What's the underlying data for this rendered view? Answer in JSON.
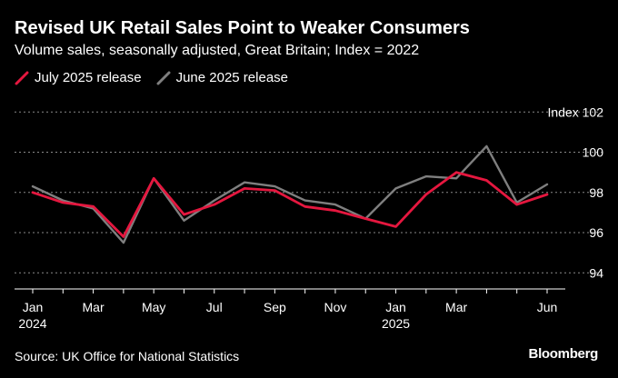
{
  "header": {
    "title": "Revised UK Retail Sales Point to Weaker Consumers",
    "subtitle": "Volume sales, seasonally adjusted, Great Britain; Index = 2022"
  },
  "footer": {
    "source": "Source: UK Office for National Statistics",
    "brand": "Bloomberg"
  },
  "chart_data": {
    "type": "line",
    "title": "Revised UK Retail Sales Point to Weaker Consumers",
    "subtitle": "Volume sales, seasonally adjusted, Great Britain; Index = 2022",
    "x": [
      "2024-01",
      "2024-02",
      "2024-03",
      "2024-04",
      "2024-05",
      "2024-06",
      "2024-07",
      "2024-08",
      "2024-09",
      "2024-10",
      "2024-11",
      "2024-12",
      "2025-01",
      "2025-02",
      "2025-03",
      "2025-04",
      "2025-05",
      "2025-06"
    ],
    "x_tick_labels": [
      {
        "month": "Jan",
        "year": "2024",
        "index": 0
      },
      {
        "month": "Mar",
        "year": "",
        "index": 2
      },
      {
        "month": "May",
        "year": "",
        "index": 4
      },
      {
        "month": "Jul",
        "year": "",
        "index": 6
      },
      {
        "month": "Sep",
        "year": "",
        "index": 8
      },
      {
        "month": "Nov",
        "year": "",
        "index": 10
      },
      {
        "month": "Jan",
        "year": "2025",
        "index": 12
      },
      {
        "month": "Mar",
        "year": "",
        "index": 14
      },
      {
        "month": "Jun",
        "year": "",
        "index": 17
      }
    ],
    "y_ticks": [
      94,
      96,
      98,
      100,
      102
    ],
    "y_unit_label": "Index",
    "ylim": [
      93.2,
      102.6
    ],
    "grid": true,
    "legend_position": "top-left",
    "series": [
      {
        "name": "July 2025 release",
        "color": "#e5173f",
        "values": [
          98.0,
          97.5,
          97.3,
          95.8,
          98.7,
          96.9,
          97.4,
          98.2,
          98.1,
          97.3,
          97.1,
          96.7,
          96.3,
          97.9,
          99.0,
          98.6,
          97.4,
          97.9
        ]
      },
      {
        "name": "June 2025 release",
        "color": "#7f7f7f",
        "values": [
          98.3,
          97.6,
          97.2,
          95.5,
          98.7,
          96.6,
          97.6,
          98.5,
          98.3,
          97.6,
          97.4,
          96.7,
          98.2,
          98.8,
          98.7,
          100.3,
          97.5,
          98.4
        ]
      }
    ]
  }
}
